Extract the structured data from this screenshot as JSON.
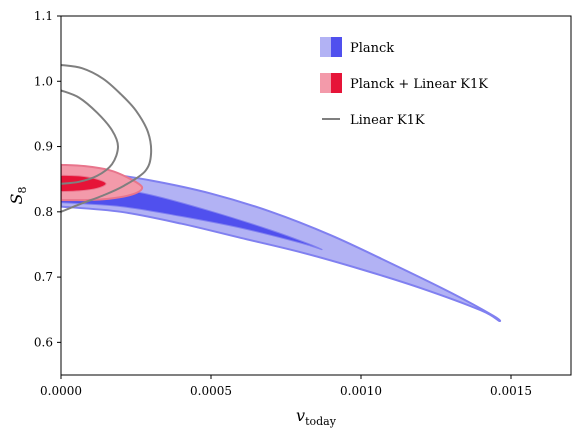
{
  "chart_data": {
    "type": "contour",
    "xlabel": {
      "main": "v",
      "sub": "today"
    },
    "ylabel": {
      "main": "S",
      "sub": "8"
    },
    "xlim": [
      0.0,
      0.0017
    ],
    "ylim": [
      0.55,
      1.1
    ],
    "x_ticks": [
      0.0,
      0.0005,
      0.001,
      0.0015
    ],
    "x_tick_labels": [
      "0.0000",
      "0.0005",
      "0.0010",
      "0.0015"
    ],
    "y_ticks": [
      0.6,
      0.7,
      0.8,
      0.9,
      1.0,
      1.1
    ],
    "y_tick_labels": [
      "0.6",
      "0.7",
      "0.8",
      "0.9",
      "1.0",
      "1.1"
    ],
    "grid": false,
    "legend_position": "upper-right",
    "series": [
      {
        "name": "Planck",
        "style": "filled",
        "colors": {
          "outer_fill": "#b2b2f4",
          "inner_fill": "#5050ee",
          "edge": "#8080f0"
        },
        "contours": [
          {
            "level": "95%",
            "points": [
              [
                0.0,
                0.808
              ],
              [
                0.0002,
                0.8
              ],
              [
                0.0004,
                0.782
              ],
              [
                0.0006,
                0.76
              ],
              [
                0.0008,
                0.738
              ],
              [
                0.001,
                0.712
              ],
              [
                0.0012,
                0.683
              ],
              [
                0.0014,
                0.649
              ],
              [
                0.00146,
                0.633
              ],
              [
                0.00144,
                0.641
              ],
              [
                0.0013,
                0.676
              ],
              [
                0.0011,
                0.721
              ],
              [
                0.0009,
                0.764
              ],
              [
                0.0007,
                0.8
              ],
              [
                0.0005,
                0.828
              ],
              [
                0.0003,
                0.848
              ],
              [
                0.0001,
                0.862
              ],
              [
                0.0,
                0.868
              ]
            ]
          },
          {
            "level": "68%",
            "points": [
              [
                0.0,
                0.814
              ],
              [
                0.0002,
                0.808
              ],
              [
                0.0004,
                0.793
              ],
              [
                0.0006,
                0.775
              ],
              [
                0.0008,
                0.752
              ],
              [
                0.00087,
                0.742
              ],
              [
                0.00082,
                0.752
              ],
              [
                0.0007,
                0.772
              ],
              [
                0.0005,
                0.801
              ],
              [
                0.0003,
                0.826
              ],
              [
                0.0001,
                0.843
              ],
              [
                0.0,
                0.849
              ]
            ]
          }
        ]
      },
      {
        "name": "Planck + Linear K1K",
        "style": "filled",
        "colors": {
          "outer_fill": "#f39aaa",
          "inner_fill": "#e61438",
          "edge": "#e8758c"
        },
        "contours": [
          {
            "level": "95%",
            "points": [
              [
                0.0,
                0.872
              ],
              [
                8e-05,
                0.87
              ],
              [
                0.00016,
                0.864
              ],
              [
                0.00022,
                0.853
              ],
              [
                0.00027,
                0.838
              ],
              [
                0.00024,
                0.827
              ],
              [
                0.00016,
                0.82
              ],
              [
                8e-05,
                0.818
              ],
              [
                0.0,
                0.818
              ]
            ]
          },
          {
            "level": "68%",
            "points": [
              [
                0.0,
                0.856
              ],
              [
                6e-05,
                0.855
              ],
              [
                0.00012,
                0.85
              ],
              [
                0.00015,
                0.843
              ],
              [
                0.00012,
                0.836
              ],
              [
                6e-05,
                0.832
              ],
              [
                0.0,
                0.831
              ]
            ]
          }
        ]
      },
      {
        "name": "Linear K1K",
        "style": "line",
        "colors": {
          "line": "#7f7f7f"
        },
        "contours": [
          {
            "level": "95%",
            "points": [
              [
                0.0,
                1.025
              ],
              [
                7e-05,
                1.02
              ],
              [
                0.00014,
                1.004
              ],
              [
                0.0002,
                0.98
              ],
              [
                0.00025,
                0.955
              ],
              [
                0.00029,
                0.922
              ],
              [
                0.0003,
                0.888
              ],
              [
                0.00028,
                0.862
              ],
              [
                0.00021,
                0.84
              ],
              [
                0.00014,
                0.825
              ],
              [
                7e-05,
                0.813
              ],
              [
                0.0,
                0.8
              ]
            ]
          },
          {
            "level": "68%",
            "points": [
              [
                0.0,
                0.986
              ],
              [
                6e-05,
                0.975
              ],
              [
                0.00012,
                0.952
              ],
              [
                0.00017,
                0.925
              ],
              [
                0.00019,
                0.9
              ],
              [
                0.00017,
                0.873
              ],
              [
                0.00012,
                0.855
              ],
              [
                6e-05,
                0.846
              ],
              [
                0.0,
                0.843
              ]
            ]
          }
        ]
      }
    ]
  }
}
